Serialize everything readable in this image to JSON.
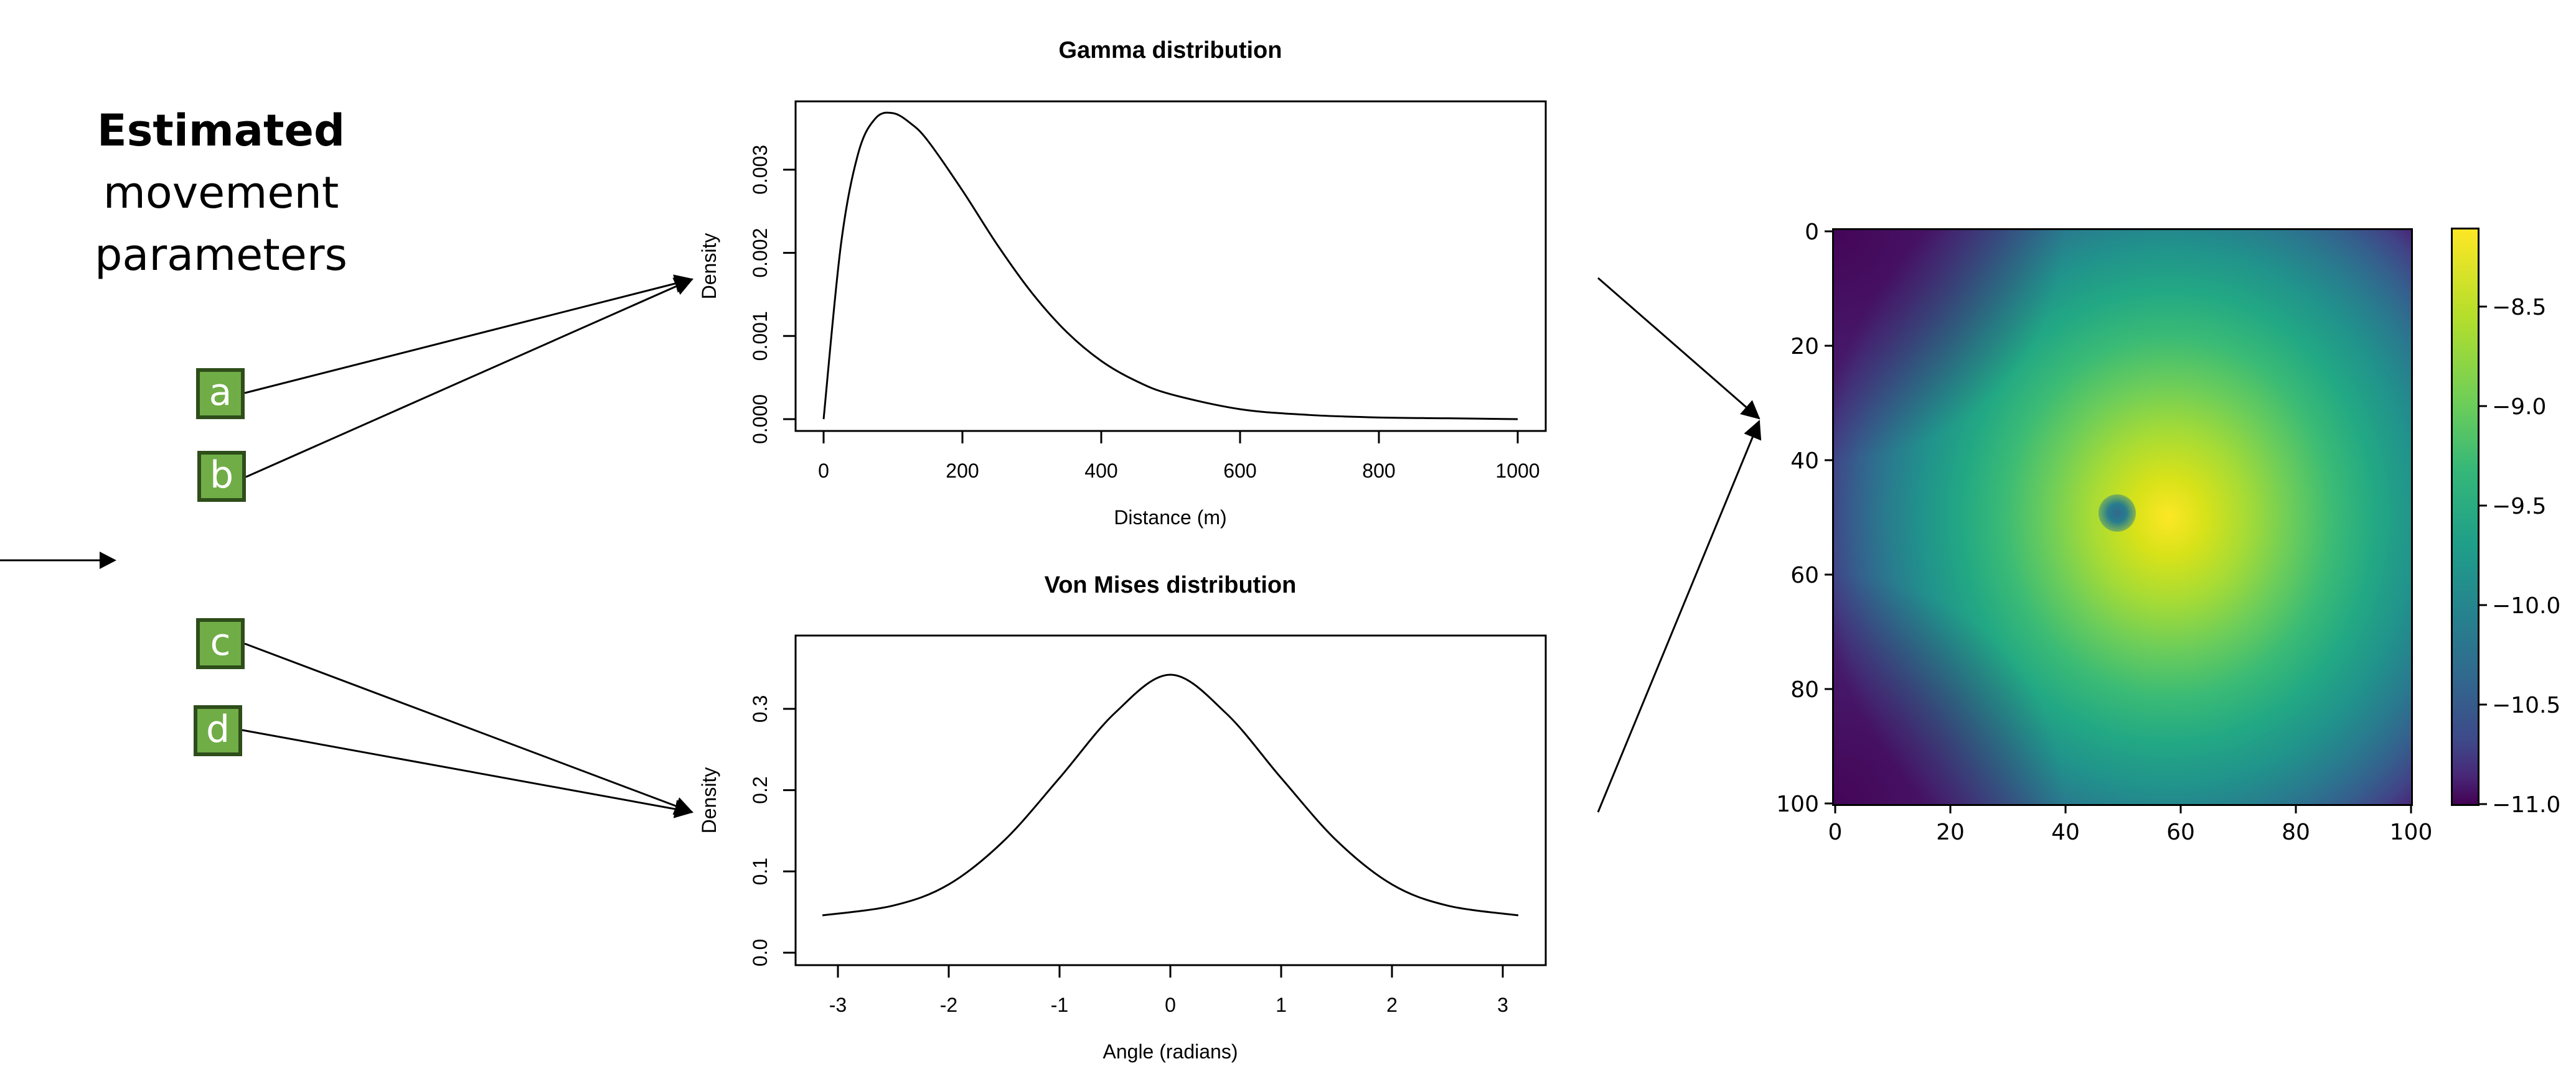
{
  "header": {
    "line1": "Estimated",
    "line2": "movement",
    "line3": "parameters"
  },
  "parameters": [
    {
      "label": "a",
      "target": "gamma"
    },
    {
      "label": "b",
      "target": "gamma"
    },
    {
      "label": "c",
      "target": "vonmises"
    },
    {
      "label": "d",
      "target": "vonmises"
    }
  ],
  "colors": {
    "param_fill": "#70AD47",
    "param_border": "#2E4D1A",
    "line": "#000000"
  },
  "chart_data": [
    {
      "type": "line",
      "title": "Gamma distribution",
      "xlabel": "Distance (m)",
      "ylabel": "Density",
      "xlim": [
        0,
        1000
      ],
      "ylim": [
        0,
        0.0037
      ],
      "xticks": [
        "0",
        "200",
        "400",
        "600",
        "800",
        "1000"
      ],
      "yticks": [
        "0.000",
        "0.001",
        "0.002",
        "0.003"
      ],
      "x": [
        0,
        25,
        50,
        75,
        100,
        125,
        150,
        200,
        250,
        300,
        350,
        400,
        450,
        500,
        600,
        700,
        800,
        900,
        1000
      ],
      "values": [
        0.0,
        0.0021,
        0.0032,
        0.00362,
        0.00368,
        0.00356,
        0.00335,
        0.00275,
        0.0021,
        0.00152,
        0.00105,
        0.0007,
        0.00046,
        0.0003,
        0.00012,
        5e-05,
        2e-05,
        1e-05,
        0.0
      ],
      "grid": false
    },
    {
      "type": "line",
      "title": "Von Mises distribution",
      "xlabel": "Angle (radians)",
      "ylabel": "Density",
      "xlim": [
        -3.14,
        3.14
      ],
      "ylim": [
        0,
        0.35
      ],
      "xticks": [
        "-3",
        "-2",
        "-1",
        "0",
        "1",
        "2",
        "3"
      ],
      "yticks": [
        "0.0",
        "0.1",
        "0.2",
        "0.3"
      ],
      "x": [
        -3.14,
        -2.5,
        -2.0,
        -1.5,
        -1.0,
        -0.5,
        0,
        0.5,
        1.0,
        1.5,
        2.0,
        2.5,
        3.14
      ],
      "values": [
        0.046,
        0.058,
        0.084,
        0.138,
        0.215,
        0.295,
        0.342,
        0.295,
        0.215,
        0.138,
        0.084,
        0.058,
        0.046
      ],
      "grid": false
    },
    {
      "type": "heatmap",
      "title": "",
      "xlim": [
        0,
        100
      ],
      "ylim": [
        100,
        0
      ],
      "xticks": [
        "0",
        "20",
        "40",
        "60",
        "80",
        "100"
      ],
      "yticks": [
        "0",
        "20",
        "40",
        "60",
        "80",
        "100"
      ],
      "colormap": "viridis",
      "colorbar": {
        "range": [
          -11.0,
          -8.1
        ],
        "ticks": [
          "-8.5",
          "-9.0",
          "-9.5",
          "-10.0",
          "-10.5",
          "-11.0"
        ]
      },
      "peak": {
        "x": 60,
        "y": 50,
        "value": -8.1
      },
      "low_spot": {
        "x": 48,
        "y": 50,
        "value": -9.9
      },
      "corner_min": {
        "x": 0,
        "y": 0,
        "value": -11.0
      }
    }
  ]
}
